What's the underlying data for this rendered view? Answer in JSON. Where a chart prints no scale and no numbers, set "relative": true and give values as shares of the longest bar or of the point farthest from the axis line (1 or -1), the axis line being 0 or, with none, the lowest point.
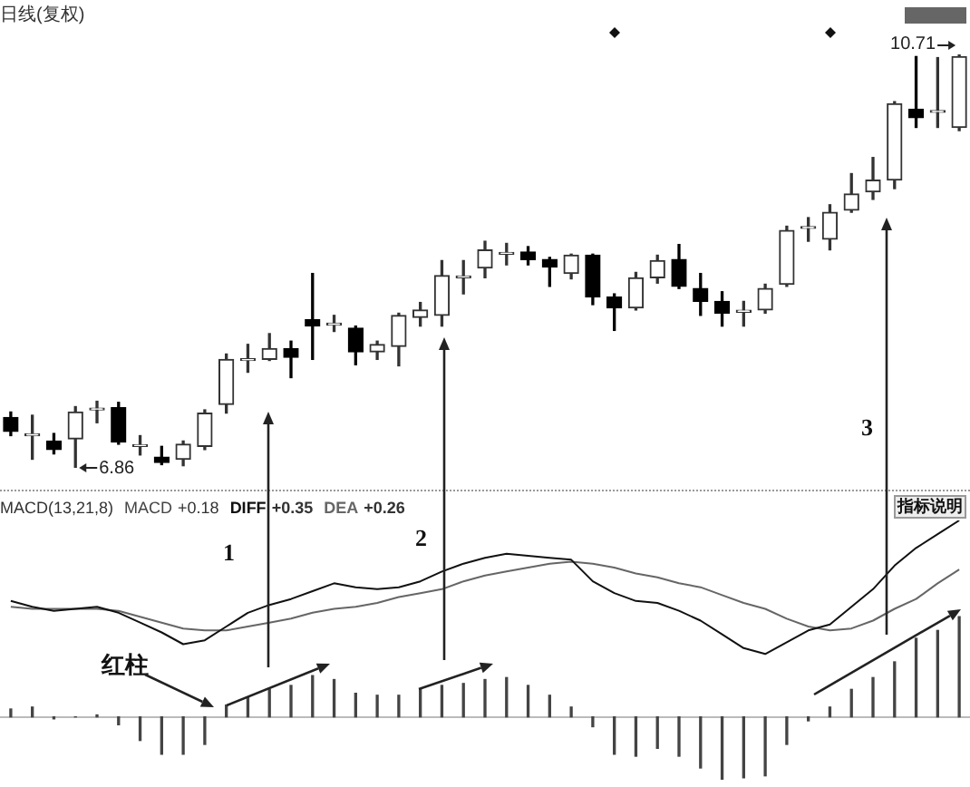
{
  "chart_data": [
    {
      "type": "candlestick",
      "title": "日线(复权)",
      "tick_labels": false,
      "colors": [
        "#000000",
        "#333333",
        "#000000",
        "#333333",
        "#333333",
        "#000000",
        "#333333",
        "#000000",
        "#333333",
        "#333333",
        "#333333",
        "#333333",
        "#333333",
        "#000000",
        "#000000",
        "#333333",
        "#000000",
        "#333333",
        "#333333",
        "#333333",
        "#333333",
        "#333333",
        "#333333",
        "#333333",
        "#000000",
        "#000000",
        "#333333",
        "#000000",
        "#000000",
        "#333333",
        "#333333",
        "#000000",
        "#000000",
        "#000000",
        "#333333",
        "#333333",
        "#333333",
        "#333333",
        "#333333",
        "#333333",
        "#333333",
        "#333333",
        "#000000",
        "#333333",
        "#333333"
      ],
      "categories": [
        null,
        null,
        null,
        null,
        null,
        null,
        null,
        null,
        null,
        null,
        null,
        null,
        null,
        null,
        null,
        null,
        null,
        null,
        null,
        null,
        null,
        null,
        null,
        null,
        null,
        null,
        null,
        null,
        null,
        null,
        null,
        null,
        null,
        null,
        null,
        null,
        null,
        null,
        null,
        null,
        null,
        null,
        null,
        null,
        null
      ],
      "ohlc": [
        [
          7.33,
          7.38,
          7.16,
          7.2
        ],
        [
          7.16,
          7.35,
          6.94,
          7.16
        ],
        [
          7.11,
          7.18,
          6.99,
          7.03
        ],
        [
          7.13,
          7.43,
          6.86,
          7.38
        ],
        [
          7.4,
          7.48,
          7.28,
          7.4
        ],
        [
          7.42,
          7.47,
          7.08,
          7.1
        ],
        [
          7.06,
          7.16,
          6.98,
          7.06
        ],
        [
          6.96,
          7.06,
          6.89,
          6.91
        ],
        [
          6.94,
          7.11,
          6.88,
          7.08
        ],
        [
          7.06,
          7.4,
          7.03,
          7.37
        ],
        [
          7.45,
          7.92,
          7.37,
          7.87
        ],
        [
          7.86,
          8.01,
          7.75,
          7.86
        ],
        [
          7.87,
          8.11,
          7.86,
          7.97
        ],
        [
          7.97,
          8.04,
          7.7,
          7.89
        ],
        [
          8.24,
          8.67,
          7.87,
          8.18
        ],
        [
          8.19,
          8.28,
          8.13,
          8.19
        ],
        [
          8.16,
          8.18,
          7.82,
          7.94
        ],
        [
          7.94,
          8.04,
          7.87,
          8.01
        ],
        [
          7.99,
          8.3,
          7.81,
          8.28
        ],
        [
          8.26,
          8.4,
          8.18,
          8.33
        ],
        [
          8.28,
          8.79,
          8.18,
          8.65
        ],
        [
          8.63,
          8.79,
          8.48,
          8.63
        ],
        [
          8.72,
          8.97,
          8.63,
          8.89
        ],
        [
          8.85,
          8.95,
          8.75,
          8.85
        ],
        [
          8.87,
          8.92,
          8.75,
          8.8
        ],
        [
          8.8,
          8.82,
          8.55,
          8.73
        ],
        [
          8.67,
          8.85,
          8.62,
          8.84
        ],
        [
          8.84,
          8.85,
          8.38,
          8.45
        ],
        [
          8.45,
          8.48,
          8.14,
          8.35
        ],
        [
          8.35,
          8.68,
          8.33,
          8.63
        ],
        [
          8.63,
          8.84,
          8.58,
          8.79
        ],
        [
          8.8,
          8.94,
          8.53,
          8.55
        ],
        [
          8.53,
          8.67,
          8.28,
          8.41
        ],
        [
          8.41,
          8.5,
          8.18,
          8.3
        ],
        [
          8.31,
          8.41,
          8.18,
          8.31
        ],
        [
          8.33,
          8.57,
          8.3,
          8.53
        ],
        [
          8.57,
          9.11,
          8.55,
          9.07
        ],
        [
          9.09,
          9.19,
          8.97,
          9.09
        ],
        [
          8.99,
          9.31,
          8.89,
          9.24
        ],
        [
          9.26,
          9.6,
          9.24,
          9.41
        ],
        [
          9.43,
          9.75,
          9.36,
          9.54
        ],
        [
          9.54,
          10.27,
          9.46,
          10.25
        ],
        [
          10.2,
          10.69,
          10.03,
          10.12
        ],
        [
          10.17,
          10.68,
          10.03,
          10.17
        ],
        [
          10.03,
          10.71,
          10.0,
          10.69
        ]
      ],
      "annotations": [
        "10.71",
        "6.86",
        "3"
      ]
    },
    {
      "type": "line",
      "title": "MACD(13,21,8)",
      "relative": true,
      "tick_labels": false,
      "categories": [
        null,
        null,
        null,
        null,
        null,
        null,
        null,
        null,
        null,
        null,
        null,
        null,
        null,
        null,
        null,
        null,
        null,
        null,
        null,
        null,
        null,
        null,
        null,
        null,
        null,
        null,
        null,
        null,
        null,
        null,
        null,
        null,
        null,
        null,
        null,
        null,
        null,
        null,
        null,
        null,
        null,
        null,
        null,
        null,
        null
      ],
      "series": [
        {
          "name": "MACD",
          "type": "bar",
          "color": "#444444",
          "values": [
            0.04,
            0.05,
            -0.01,
            0,
            0.01,
            -0.04,
            -0.12,
            -0.19,
            -0.19,
            -0.14,
            0.06,
            0.1,
            0.14,
            0.16,
            0.21,
            0.19,
            0.12,
            0.11,
            0.11,
            0.14,
            0.16,
            0.17,
            0.19,
            0.2,
            0.16,
            0.11,
            0.05,
            -0.05,
            -0.19,
            -0.2,
            -0.16,
            -0.2,
            -0.26,
            -0.32,
            -0.31,
            -0.3,
            -0.14,
            -0.02,
            0.05,
            0.14,
            0.2,
            0.28,
            0.4,
            0.44,
            0.51
          ]
        },
        {
          "name": "DIFF",
          "color": "#111111",
          "values": [
            0.59,
            0.56,
            0.54,
            0.55,
            0.56,
            0.53,
            0.48,
            0.43,
            0.37,
            0.39,
            0.46,
            0.53,
            0.57,
            0.6,
            0.64,
            0.68,
            0.66,
            0.65,
            0.66,
            0.69,
            0.74,
            0.78,
            0.81,
            0.83,
            0.82,
            0.81,
            0.8,
            0.69,
            0.63,
            0.59,
            0.58,
            0.54,
            0.49,
            0.42,
            0.35,
            0.32,
            0.38,
            0.44,
            0.47,
            0.56,
            0.65,
            0.77,
            0.86,
            0.93,
            1
          ]
        },
        {
          "name": "DEA",
          "color": "#666666",
          "values": [
            0.56,
            0.55,
            0.55,
            0.55,
            0.55,
            0.54,
            0.51,
            0.48,
            0.45,
            0.44,
            0.44,
            0.46,
            0.48,
            0.5,
            0.53,
            0.55,
            0.56,
            0.58,
            0.61,
            0.63,
            0.65,
            0.69,
            0.72,
            0.74,
            0.76,
            0.78,
            0.79,
            0.78,
            0.76,
            0.73,
            0.71,
            0.68,
            0.66,
            0.62,
            0.58,
            0.55,
            0.5,
            0.46,
            0.44,
            0.45,
            0.49,
            0.55,
            0.6,
            0.68,
            0.75
          ]
        }
      ],
      "annotations": [
        "+0.18",
        "+0.35",
        "+0.26",
        "1",
        "2",
        "红柱",
        "指标说明"
      ]
    }
  ]
}
